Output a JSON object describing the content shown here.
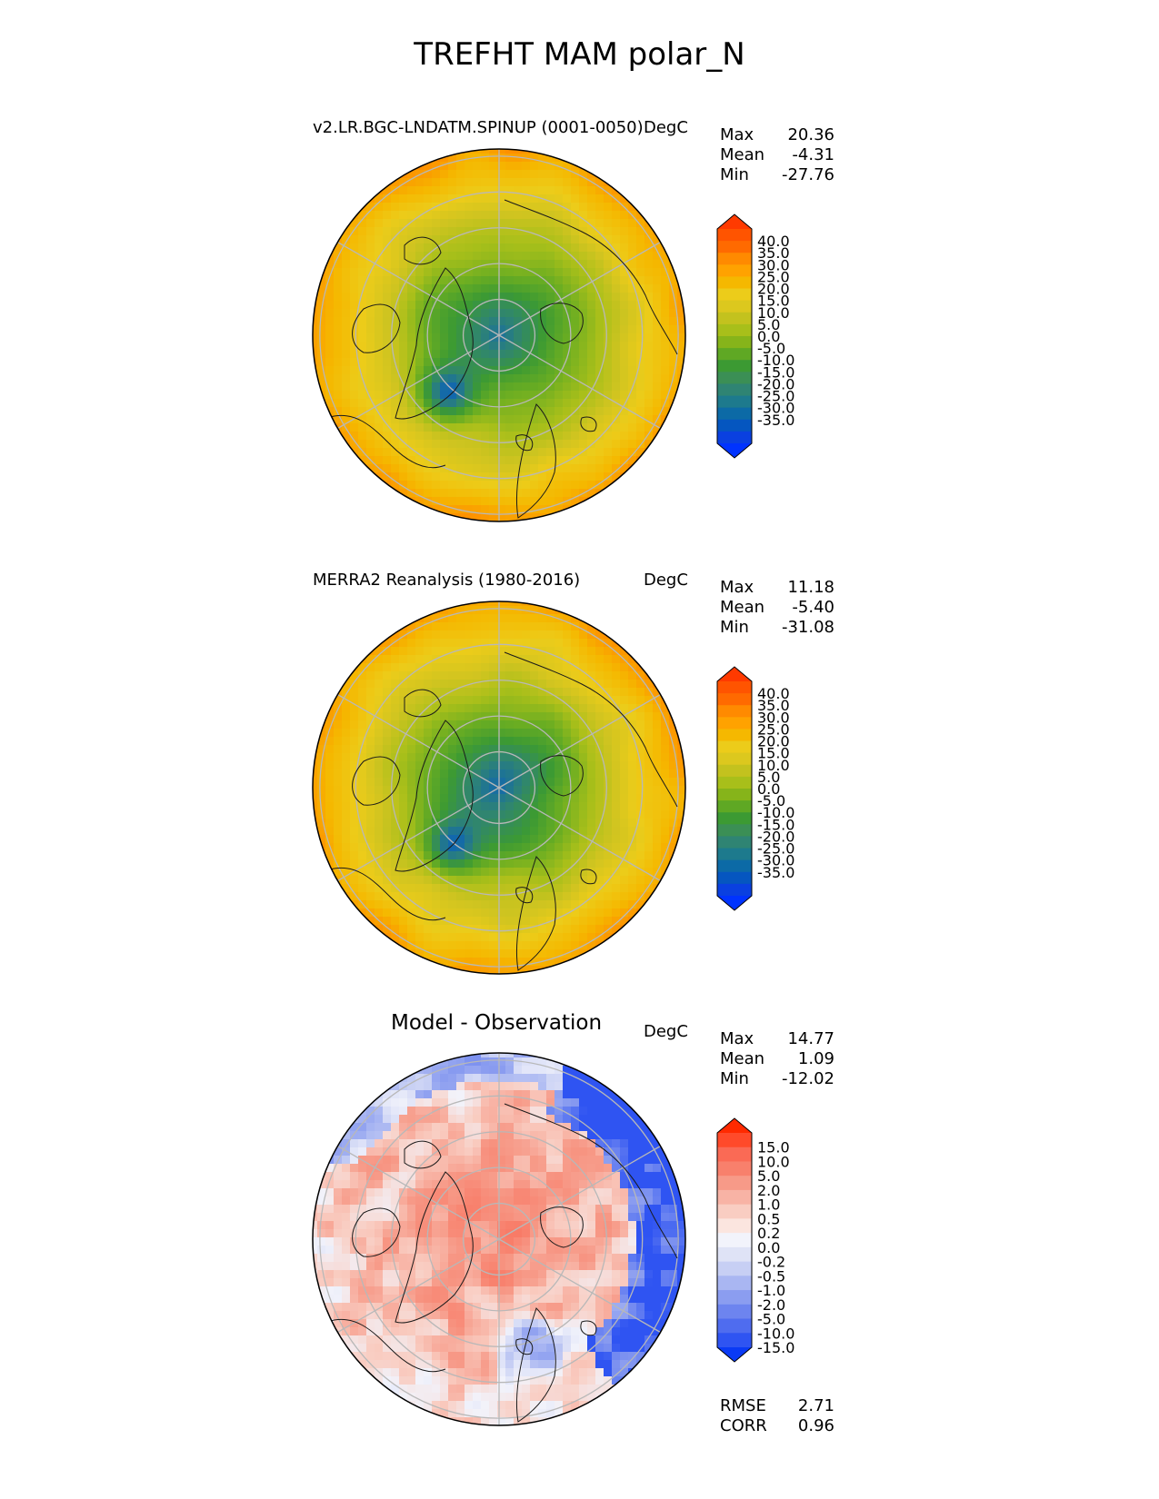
{
  "title": "TREFHT MAM polar_N",
  "panels": [
    {
      "title": "v2.LR.BGC-LNDATM.SPINUP (0001-0050)",
      "units": "DegC",
      "stats": [
        [
          "Max",
          "20.36"
        ],
        [
          "Mean",
          "-4.31"
        ],
        [
          "Min",
          "-27.76"
        ]
      ],
      "colorbar_labels": [
        "40.0",
        "35.0",
        "30.0",
        "25.0",
        "20.0",
        "15.0",
        "10.0",
        "5.0",
        "0.0",
        "-5.0",
        "-10.0",
        "-15.0",
        "-20.0",
        "-25.0",
        "-30.0",
        "-35.0"
      ],
      "colorbar_colors": [
        "#ff3a00",
        "#ff5400",
        "#ff6a00",
        "#ff8a00",
        "#ffa200",
        "#f5b800",
        "#eccc1a",
        "#dcc81e",
        "#c3c21e",
        "#a8bf1a",
        "#86b41a",
        "#5fa824",
        "#3c9a33",
        "#3b8f55",
        "#2f8473",
        "#1d7a8d",
        "#0c6aa6",
        "#0556c0",
        "#0a40e0",
        "#0033ff"
      ],
      "field": "model"
    },
    {
      "title": "MERRA2 Reanalysis (1980-2016)",
      "units": "DegC",
      "stats": [
        [
          "Max",
          "11.18"
        ],
        [
          "Mean",
          "-5.40"
        ],
        [
          "Min",
          "-31.08"
        ]
      ],
      "colorbar_labels": [
        "40.0",
        "35.0",
        "30.0",
        "25.0",
        "20.0",
        "15.0",
        "10.0",
        "5.0",
        "0.0",
        "-5.0",
        "-10.0",
        "-15.0",
        "-20.0",
        "-25.0",
        "-30.0",
        "-35.0"
      ],
      "colorbar_colors": [
        "#ff3a00",
        "#ff5400",
        "#ff6a00",
        "#ff8a00",
        "#ffa200",
        "#f5b800",
        "#eccc1a",
        "#dcc81e",
        "#c3c21e",
        "#a8bf1a",
        "#86b41a",
        "#5fa824",
        "#3c9a33",
        "#3b8f55",
        "#2f8473",
        "#1d7a8d",
        "#0c6aa6",
        "#0556c0",
        "#0a40e0",
        "#0033ff"
      ],
      "field": "obs"
    },
    {
      "title": "Model - Observation",
      "units": "DegC",
      "stats": [
        [
          "Max",
          "14.77"
        ],
        [
          "Mean",
          "1.09"
        ],
        [
          "Min",
          "-12.02"
        ]
      ],
      "colorbar_labels": [
        "15.0",
        "10.0",
        "5.0",
        "2.0",
        "1.0",
        "0.5",
        "0.2",
        "0.0",
        "-0.2",
        "-0.5",
        "-1.0",
        "-2.0",
        "-5.0",
        "-10.0",
        "-15.0"
      ],
      "colorbar_colors": [
        "#ff2a00",
        "#ff4a2a",
        "#fa6a55",
        "#f8806c",
        "#f79a88",
        "#f8b3a5",
        "#f9cdc2",
        "#fbe5df",
        "#f2f3fb",
        "#dfe3f6",
        "#c7cff4",
        "#a9b6f2",
        "#8b9df0",
        "#6d84ef",
        "#4f6cef",
        "#2f54f2",
        "#0a3af5"
      ],
      "bottom_stats": [
        [
          "RMSE",
          "2.71"
        ],
        [
          "CORR",
          "0.96"
        ]
      ],
      "field": "diff"
    }
  ]
}
